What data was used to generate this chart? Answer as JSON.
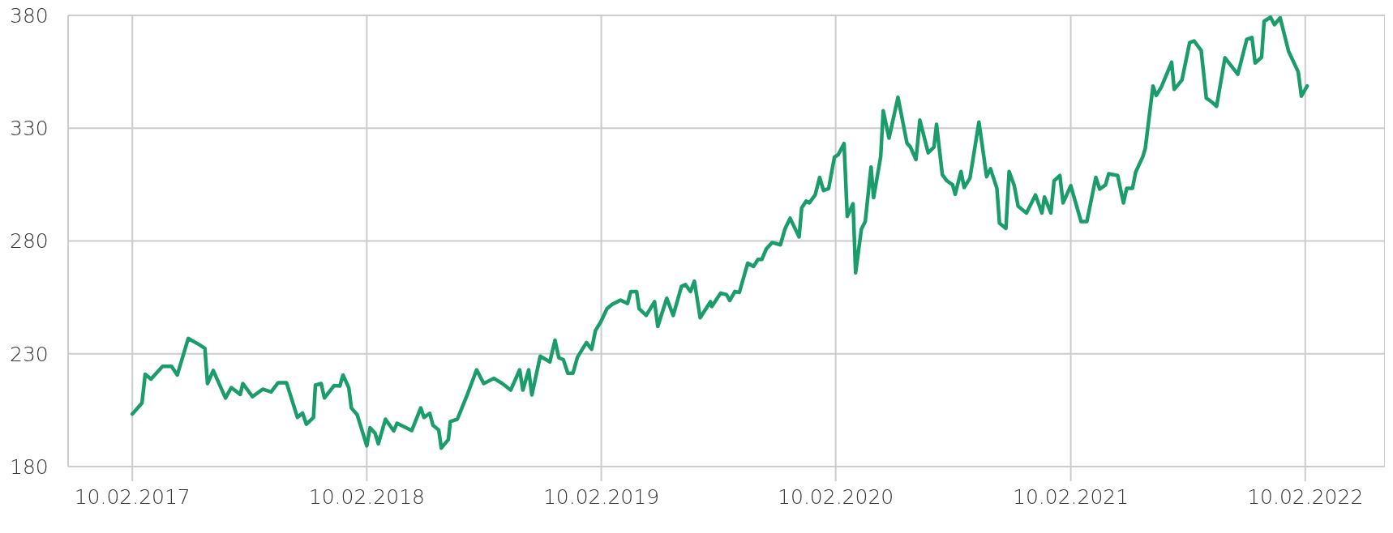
{
  "chart_data": {
    "type": "line",
    "x": [
      "2017-02-10",
      "2017-02-25",
      "2017-03-02",
      "2017-03-11",
      "2017-03-29",
      "2017-04-12",
      "2017-04-21",
      "2017-05-08",
      "2017-05-26",
      "2017-06-03",
      "2017-06-07",
      "2017-06-16",
      "2017-07-05",
      "2017-07-14",
      "2017-07-28",
      "2017-08-01",
      "2017-08-16",
      "2017-09-01",
      "2017-09-14",
      "2017-09-25",
      "2017-10-08",
      "2017-10-25",
      "2017-11-02",
      "2017-11-08",
      "2017-11-19",
      "2017-11-22",
      "2017-12-01",
      "2017-12-06",
      "2017-12-21",
      "2017-12-30",
      "2018-01-04",
      "2018-01-13",
      "2018-01-17",
      "2018-01-26",
      "2018-02-10",
      "2018-02-15",
      "2018-02-23",
      "2018-02-28",
      "2018-03-11",
      "2018-03-24",
      "2018-03-29",
      "2018-04-21",
      "2018-05-05",
      "2018-05-10",
      "2018-05-19",
      "2018-05-24",
      "2018-06-02",
      "2018-06-06",
      "2018-06-17",
      "2018-06-20",
      "2018-07-01",
      "2018-07-17",
      "2018-07-31",
      "2018-08-11",
      "2018-08-27",
      "2018-09-09",
      "2018-09-22",
      "2018-10-06",
      "2018-10-11",
      "2018-10-20",
      "2018-10-25",
      "2018-11-07",
      "2018-11-22",
      "2018-11-30",
      "2018-12-06",
      "2018-12-13",
      "2018-12-20",
      "2018-12-28",
      "2019-01-04",
      "2019-01-18",
      "2019-01-26",
      "2019-02-01",
      "2019-02-09",
      "2019-02-19",
      "2019-02-27",
      "2019-03-12",
      "2019-03-23",
      "2019-03-28",
      "2019-04-06",
      "2019-04-10",
      "2019-04-21",
      "2019-05-04",
      "2019-05-09",
      "2019-05-23",
      "2019-06-02",
      "2019-06-15",
      "2019-06-21",
      "2019-06-29",
      "2019-07-05",
      "2019-07-14",
      "2019-07-30",
      "2019-08-01",
      "2019-08-15",
      "2019-08-24",
      "2019-08-29",
      "2019-09-06",
      "2019-09-13",
      "2019-09-26",
      "2019-10-05",
      "2019-10-12",
      "2019-10-18",
      "2019-10-25",
      "2019-11-03",
      "2019-11-16",
      "2019-11-23",
      "2019-12-01",
      "2019-12-15",
      "2019-12-19",
      "2019-12-26",
      "2019-12-31",
      "2020-01-09",
      "2020-01-16",
      "2020-01-22",
      "2020-01-30",
      "2020-02-08",
      "2020-02-14",
      "2020-02-23",
      "2020-02-28",
      "2020-03-08",
      "2020-03-12",
      "2020-03-21",
      "2020-03-27",
      "2020-04-05",
      "2020-04-09",
      "2020-04-20",
      "2020-04-24",
      "2020-05-03",
      "2020-05-17",
      "2020-05-31",
      "2020-06-05",
      "2020-06-14",
      "2020-06-20",
      "2020-07-03",
      "2020-07-12",
      "2020-07-16",
      "2020-07-25",
      "2020-08-01",
      "2020-08-10",
      "2020-08-14",
      "2020-08-23",
      "2020-08-28",
      "2020-09-06",
      "2020-09-20",
      "2020-10-02",
      "2020-10-08",
      "2020-10-18",
      "2020-10-22",
      "2020-11-01",
      "2020-11-06",
      "2020-11-14",
      "2020-11-20",
      "2020-12-03",
      "2020-12-17",
      "2020-12-27",
      "2020-12-31",
      "2021-01-10",
      "2021-01-15",
      "2021-01-24",
      "2021-01-29",
      "2021-02-10",
      "2021-02-26",
      "2021-03-07",
      "2021-03-21",
      "2021-03-27",
      "2021-04-05",
      "2021-04-10",
      "2021-04-24",
      "2021-05-03",
      "2021-05-08",
      "2021-05-17",
      "2021-05-22",
      "2021-06-02",
      "2021-06-06",
      "2021-06-18",
      "2021-06-23",
      "2021-07-01",
      "2021-07-17",
      "2021-07-21",
      "2021-08-02",
      "2021-08-14",
      "2021-08-21",
      "2021-09-01",
      "2021-09-09",
      "2021-09-18",
      "2021-09-25",
      "2021-10-08",
      "2021-10-28",
      "2021-11-11",
      "2021-11-19",
      "2021-11-24",
      "2021-12-04",
      "2021-12-08",
      "2021-12-18",
      "2021-12-24",
      "2022-01-02",
      "2022-01-15",
      "2022-01-30",
      "2022-02-04",
      "2022-02-13"
    ],
    "series": [
      {
        "color": "#1a9c6b",
        "values": [
          203.3,
          208.2,
          220.9,
          218.8,
          224.4,
          224.4,
          220.6,
          236.8,
          233.9,
          232.4,
          216.8,
          222.6,
          210.4,
          215,
          212,
          216.8,
          211,
          214.3,
          213.1,
          217.2,
          217.2,
          201.8,
          203.7,
          198.8,
          201.8,
          216.1,
          216.8,
          210.4,
          215.9,
          215.7,
          220.6,
          214.9,
          206,
          203,
          189.2,
          197.2,
          194.7,
          190.1,
          201,
          195.8,
          199.2,
          196,
          206,
          201.8,
          203.6,
          198.3,
          196.2,
          188.2,
          192,
          200,
          201,
          212.3,
          222.9,
          216.8,
          219.1,
          216.8,
          213.9,
          222.9,
          213.9,
          222.9,
          211.8,
          228.9,
          226.4,
          236,
          228.2,
          227.4,
          221.4,
          221.4,
          228.5,
          235,
          232,
          240.3,
          244,
          250,
          251.9,
          253.8,
          252.3,
          257.6,
          257.6,
          250,
          247,
          253.1,
          242.1,
          254.6,
          247,
          259.9,
          260.7,
          257.6,
          262.2,
          246,
          253.1,
          250.9,
          256.9,
          256.2,
          253.6,
          257.6,
          257.2,
          270.2,
          268.7,
          271.8,
          271.8,
          276.5,
          279.3,
          278.3,
          285.3,
          290.1,
          281.8,
          294.6,
          297.7,
          296.9,
          300.4,
          308.2,
          302.4,
          303.2,
          317.1,
          318.3,
          323.2,
          290.9,
          296.5,
          265.9,
          285.3,
          288.6,
          312.8,
          299.2,
          317.3,
          337.7,
          325.6,
          343.7,
          323.3,
          321.8,
          316.1,
          333.6,
          319.1,
          321.6,
          331.7,
          309.4,
          306.7,
          304.9,
          300.7,
          310.8,
          303.7,
          307.9,
          332.7,
          308.5,
          312,
          303.3,
          287.9,
          285.6,
          310.8,
          304.5,
          295.4,
          292.4,
          300.4,
          292.4,
          299.5,
          292.4,
          306.7,
          309,
          296.9,
          304.5,
          288.6,
          288.6,
          308.2,
          303,
          304.8,
          309.8,
          309,
          296.9,
          303.3,
          303.3,
          310.5,
          317.3,
          321.1,
          348.7,
          344.5,
          348.3,
          359.2,
          347.2,
          351.3,
          367.9,
          368.7,
          364.4,
          343.3,
          341.5,
          339.7,
          361.2,
          353.9,
          369.4,
          370.2,
          358.9,
          361.4,
          377.4,
          379.2,
          375.9,
          378.9,
          364.1,
          355,
          344.2,
          348.7
        ]
      }
    ],
    "xlim": [
      "2016-11-02",
      "2022-06-14"
    ],
    "xticks": [
      {
        "value": "2017-02-10",
        "label": "10.02.2017"
      },
      {
        "value": "2018-02-10",
        "label": "10.02.2018"
      },
      {
        "value": "2019-02-10",
        "label": "10.02.2019"
      },
      {
        "value": "2020-02-10",
        "label": "10.02.2020"
      },
      {
        "value": "2021-02-10",
        "label": "10.02.2021"
      },
      {
        "value": "2022-02-10",
        "label": "10.02.2022"
      }
    ],
    "ylim": [
      180,
      380
    ],
    "yticks": [
      180,
      230,
      280,
      330,
      380
    ],
    "grid": true,
    "line_style": "solid",
    "marker": "none"
  }
}
